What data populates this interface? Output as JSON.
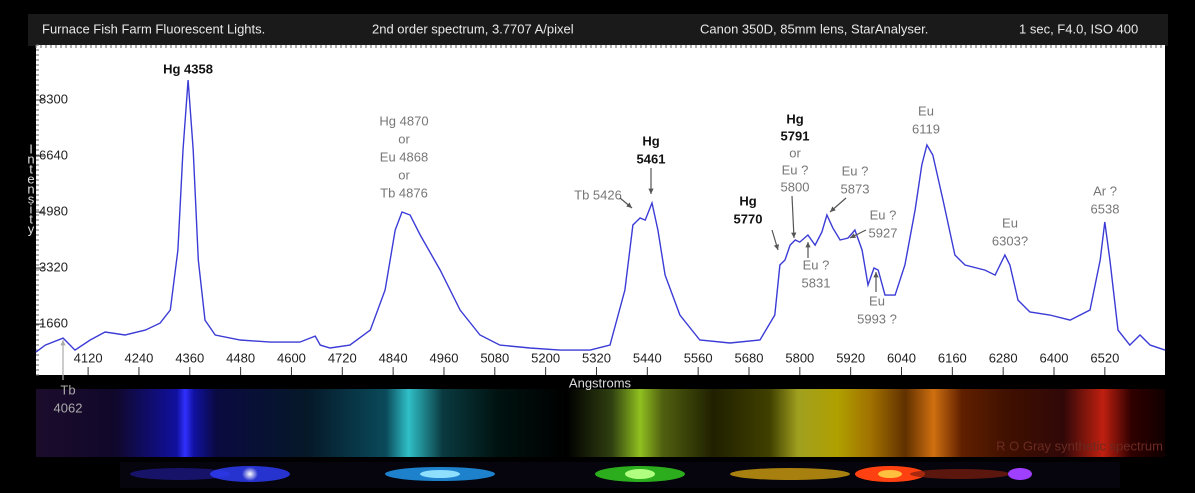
{
  "chart_data": {
    "type": "line",
    "title": "Furnace Fish Farm Fluorescent Lights.",
    "subtitle": "2nd order spectrum,  3.7707 A/pixel",
    "camera": "Canon 350D, 85mm lens, StarAnalyser.",
    "exposure": "1 sec, F4.0, ISO 400",
    "x_label": "Angstroms",
    "y_label": "Intensity",
    "spectrum_label": "R O Gray synthetic spectrum",
    "color": "#3b3bd6",
    "xlim": [
      3997,
      6662
    ],
    "ylim": [
      150,
      9930
    ],
    "xticks": [
      4120,
      4240,
      4360,
      4480,
      4600,
      4720,
      4840,
      4960,
      5080,
      5200,
      5320,
      5440,
      5560,
      5680,
      5800,
      5920,
      6040,
      6160,
      6280,
      6400,
      6520
    ],
    "yticks": [
      1660,
      3320,
      4980,
      6640,
      8300
    ],
    "x": [
      3997,
      4019,
      4061,
      4089,
      4125,
      4160,
      4207,
      4255,
      4290,
      4314,
      4332,
      4344,
      4356,
      4368,
      4380,
      4396,
      4420,
      4479,
      4550,
      4620,
      4656,
      4668,
      4691,
      4738,
      4786,
      4821,
      4845,
      4861,
      4880,
      4904,
      4951,
      4998,
      5045,
      5092,
      5163,
      5234,
      5305,
      5352,
      5387,
      5406,
      5423,
      5435,
      5451,
      5465,
      5482,
      5517,
      5564,
      5635,
      5706,
      5741,
      5753,
      5765,
      5777,
      5789,
      5800,
      5819,
      5836,
      5852,
      5864,
      5878,
      5895,
      5914,
      5930,
      5947,
      5961,
      5975,
      5985,
      6001,
      6025,
      6048,
      6072,
      6088,
      6100,
      6114,
      6138,
      6166,
      6190,
      6237,
      6261,
      6284,
      6296,
      6315,
      6343,
      6390,
      6438,
      6485,
      6509,
      6520,
      6532,
      6551,
      6579,
      6603,
      6627,
      6662
    ],
    "values": [
      830,
      1037,
      1245,
      889,
      1186,
      1423,
      1334,
      1482,
      1689,
      2075,
      3853,
      6817,
      8892,
      6817,
      3557,
      1778,
      1334,
      1186,
      1126,
      1126,
      1304,
      1037,
      949,
      1037,
      1482,
      2668,
      4446,
      4980,
      4891,
      4298,
      3260,
      2075,
      1334,
      1037,
      949,
      889,
      889,
      1037,
      2668,
      4594,
      4802,
      4742,
      5246,
      4446,
      3112,
      1927,
      1186,
      1097,
      1186,
      1927,
      3409,
      3557,
      4001,
      4150,
      4090,
      4298,
      4001,
      4387,
      4891,
      4505,
      4150,
      4209,
      4446,
      3853,
      2816,
      3320,
      3260,
      2519,
      2519,
      3409,
      5039,
      6373,
      6965,
      6669,
      5335,
      3705,
      3409,
      3260,
      3112,
      3705,
      3409,
      2371,
      2016,
      1927,
      1778,
      2075,
      3557,
      4683,
      3557,
      1482,
      1037,
      1334,
      1037,
      889
    ],
    "annotations": [
      {
        "lines": [
          "Hg 4358"
        ]
      },
      {
        "lines": [
          "Hg 4870",
          "or",
          "Eu 4868",
          "or",
          "Tb 4876"
        ]
      },
      {
        "lines": [
          "Tb 5426"
        ]
      },
      {
        "lines": [
          "Hg",
          "5461"
        ]
      },
      {
        "lines": [
          "Hg",
          "5770"
        ]
      },
      {
        "lines": [
          "Hg",
          "5791",
          "or",
          "Eu ?",
          "5800"
        ]
      },
      {
        "lines": [
          "Eu ?",
          "5831"
        ]
      },
      {
        "lines": [
          "Eu ?",
          "5873"
        ]
      },
      {
        "lines": [
          "Eu ?",
          "5927"
        ]
      },
      {
        "lines": [
          "Eu",
          "5993 ?"
        ]
      },
      {
        "lines": [
          "Eu",
          "6119"
        ]
      },
      {
        "lines": [
          "Eu",
          "6303?"
        ]
      },
      {
        "lines": [
          "Ar ?",
          "6538"
        ]
      },
      {
        "lines": [
          "Tb",
          "4062"
        ]
      }
    ]
  }
}
